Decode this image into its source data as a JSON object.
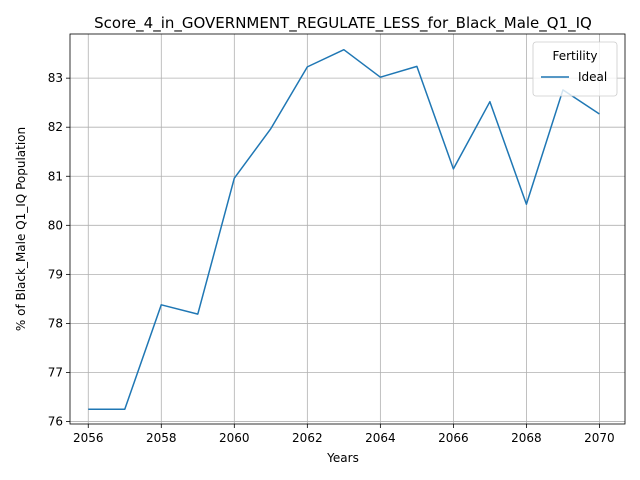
{
  "chart_data": {
    "type": "line",
    "title": "Score_4_in_GOVERNMENT_REGULATE_LESS_for_Black_Male_Q1_IQ",
    "xlabel": "Years",
    "ylabel": "% of Black_Male Q1_IQ Population",
    "xlim": [
      2055.5,
      2070.7
    ],
    "ylim": [
      75.95,
      83.9
    ],
    "xticks": [
      2056,
      2058,
      2060,
      2062,
      2064,
      2066,
      2068,
      2070
    ],
    "yticks": [
      76,
      77,
      78,
      79,
      80,
      81,
      82,
      83
    ],
    "grid": true,
    "legend": {
      "title": "Fertility",
      "placement": "top-right"
    },
    "series": [
      {
        "name": "Ideal",
        "color": "#1f77b4",
        "x": [
          2056,
          2057,
          2058,
          2059,
          2060,
          2061,
          2062,
          2063,
          2064,
          2065,
          2066,
          2067,
          2068,
          2069,
          2070
        ],
        "y": [
          76.25,
          76.25,
          78.38,
          78.19,
          80.96,
          81.97,
          83.23,
          83.58,
          83.02,
          83.24,
          81.15,
          82.52,
          80.43,
          82.76,
          82.27
        ]
      }
    ]
  }
}
